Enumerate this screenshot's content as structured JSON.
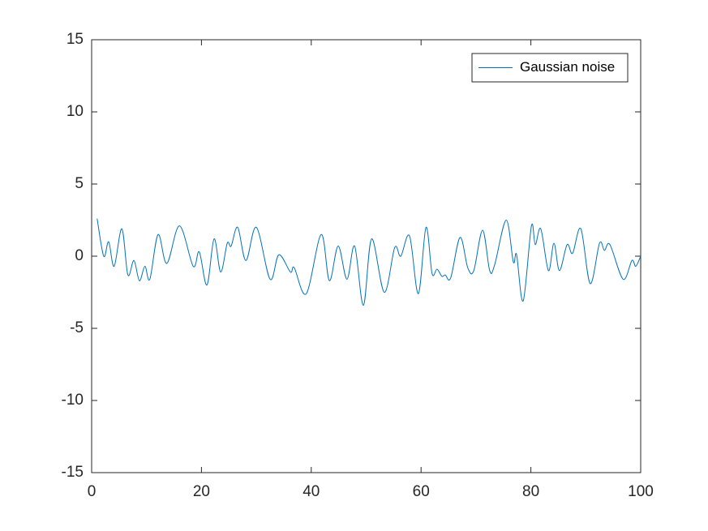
{
  "chart_data": {
    "type": "line",
    "x": [
      1,
      2.2,
      3.1,
      4.1,
      5.5,
      6.6,
      7.7,
      8.7,
      9.7,
      10.6,
      12.1,
      13.7,
      16.0,
      18.5,
      19.6,
      21.0,
      22.3,
      23.5,
      24.7,
      25.4,
      26.6,
      28.1,
      30.0,
      32.5,
      34.1,
      36.2,
      36.9,
      39.1,
      41.8,
      43.3,
      44.9,
      46.5,
      47.9,
      49.5,
      51.0,
      53.3,
      55.2,
      56.3,
      57.9,
      59.5,
      60.9,
      62.0,
      62.9,
      63.8,
      64.4,
      65.4,
      67.1,
      68.5,
      69.6,
      71.2,
      72.5,
      73.4,
      75.5,
      76.8,
      77.4,
      78.6,
      80.1,
      80.8,
      81.8,
      83.2,
      84.2,
      85.2,
      86.6,
      87.6,
      89.1,
      90.8,
      92.5,
      93.4,
      94.4,
      96.8,
      98.4,
      99.1,
      100
    ],
    "series": [
      {
        "name": "Gaussian noise",
        "color": "#0072bd",
        "values": [
          2.6,
          0.0,
          1.0,
          -0.7,
          1.9,
          -1.3,
          -0.3,
          -1.7,
          -0.7,
          -1.6,
          1.5,
          -0.5,
          2.1,
          -0.7,
          0.3,
          -2.0,
          1.2,
          -1.1,
          0.9,
          0.7,
          2.0,
          -0.3,
          2.0,
          -1.6,
          0.1,
          -1.1,
          -0.8,
          -2.6,
          1.5,
          -1.7,
          0.7,
          -1.6,
          0.7,
          -3.4,
          1.2,
          -2.5,
          0.6,
          0.0,
          1.4,
          -2.6,
          2.0,
          -1.2,
          -0.9,
          -1.4,
          -1.3,
          -1.5,
          1.3,
          -0.8,
          -1.0,
          1.8,
          -1.0,
          -0.6,
          2.5,
          -0.4,
          0.1,
          -3.1,
          2.1,
          0.8,
          1.9,
          -1.0,
          0.9,
          -1.0,
          0.8,
          0.2,
          1.9,
          -1.9,
          0.9,
          0.4,
          0.8,
          -1.6,
          -0.3,
          -0.7,
          0.0
        ]
      }
    ],
    "xlim": [
      0,
      100
    ],
    "ylim": [
      -15,
      15
    ],
    "xticks": [
      0,
      20,
      40,
      60,
      80,
      100
    ],
    "yticks": [
      -15,
      -10,
      -5,
      0,
      5,
      10,
      15
    ],
    "legend": "northeast"
  }
}
